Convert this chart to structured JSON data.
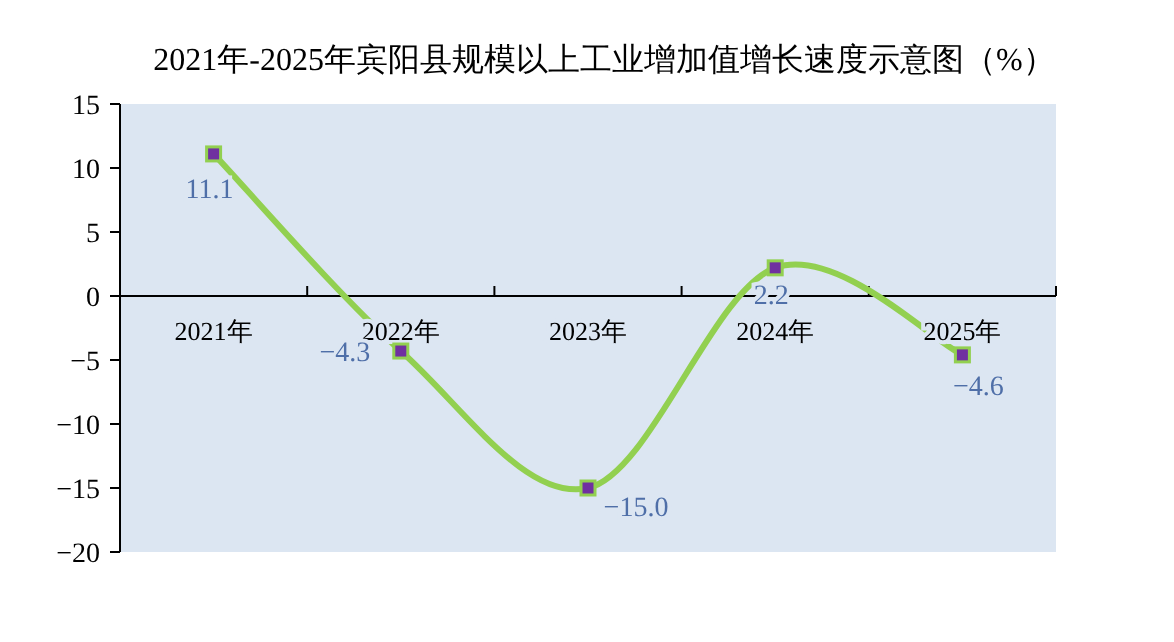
{
  "chart_data": {
    "type": "line",
    "title": "2021年-2025年宾阳县规模以上工业增加值增长速度示意图（%）",
    "categories": [
      "2021年",
      "2022年",
      "2023年",
      "2024年",
      "2025年"
    ],
    "series": [
      {
        "color": "#92d050",
        "values": [
          11.1,
          -4.3,
          -15.0,
          2.2,
          -4.6
        ],
        "value_labels": [
          "11.1",
          "−4.3",
          "−15.0",
          "2.2",
          "−4.6"
        ]
      }
    ],
    "ylim": [
      -20,
      15
    ],
    "yticks": [
      -20,
      -15,
      -10,
      -5,
      0,
      5,
      10,
      15
    ],
    "marker": "square",
    "grid": false
  }
}
